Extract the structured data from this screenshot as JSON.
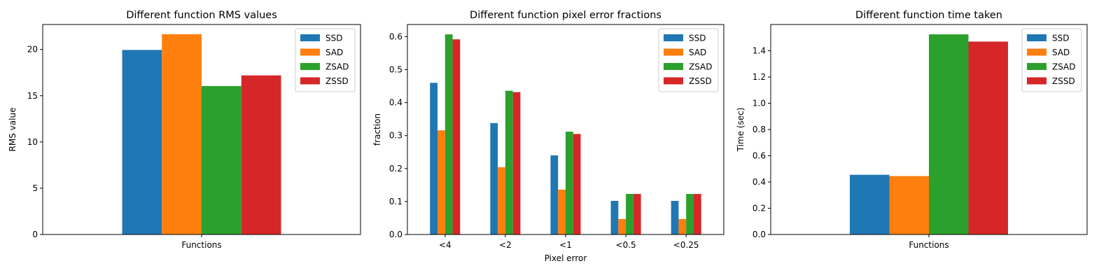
{
  "colors": {
    "SSD": "#1f77b4",
    "SAD": "#ff7f0e",
    "ZSAD": "#2ca02c",
    "ZSSD": "#d62728"
  },
  "chart_data": [
    {
      "type": "bar",
      "title": "Different function RMS values",
      "xlabel": "",
      "ylabel": "RMS value",
      "categories": [
        "Functions"
      ],
      "ylim": [
        0,
        22.7
      ],
      "yticks": [
        0,
        5,
        10,
        15,
        20
      ],
      "legend_position": "top-right",
      "series": [
        {
          "name": "SSD",
          "values": [
            19.95
          ]
        },
        {
          "name": "SAD",
          "values": [
            21.65
          ]
        },
        {
          "name": "ZSAD",
          "values": [
            16.05
          ]
        },
        {
          "name": "ZSSD",
          "values": [
            17.2
          ]
        }
      ]
    },
    {
      "type": "bar",
      "title": "Different function pixel error fractions",
      "xlabel": "Pixel error",
      "ylabel": "fraction",
      "categories": [
        "<4",
        "<2",
        "<1",
        "<0.5",
        "<0.25"
      ],
      "ylim": [
        0,
        0.637
      ],
      "yticks": [
        0.0,
        0.1,
        0.2,
        0.3,
        0.4,
        0.5,
        0.6
      ],
      "legend_position": "top-right",
      "series": [
        {
          "name": "SSD",
          "values": [
            0.46,
            0.338,
            0.24,
            0.102,
            0.102
          ]
        },
        {
          "name": "SAD",
          "values": [
            0.316,
            0.204,
            0.136,
            0.047,
            0.047
          ]
        },
        {
          "name": "ZSAD",
          "values": [
            0.607,
            0.436,
            0.312,
            0.123,
            0.123
          ]
        },
        {
          "name": "ZSSD",
          "values": [
            0.592,
            0.432,
            0.305,
            0.123,
            0.123
          ]
        }
      ]
    },
    {
      "type": "bar",
      "title": "Different function time taken",
      "xlabel": "",
      "ylabel": "Time (sec)",
      "categories": [
        "Functions"
      ],
      "ylim": [
        0,
        1.6
      ],
      "yticks": [
        0.0,
        0.2,
        0.4,
        0.6,
        0.8,
        1.0,
        1.2,
        1.4
      ],
      "legend_position": "top-right",
      "series": [
        {
          "name": "SSD",
          "values": [
            0.455
          ]
        },
        {
          "name": "SAD",
          "values": [
            0.445
          ]
        },
        {
          "name": "ZSAD",
          "values": [
            1.525
          ]
        },
        {
          "name": "ZSSD",
          "values": [
            1.47
          ]
        }
      ]
    }
  ]
}
